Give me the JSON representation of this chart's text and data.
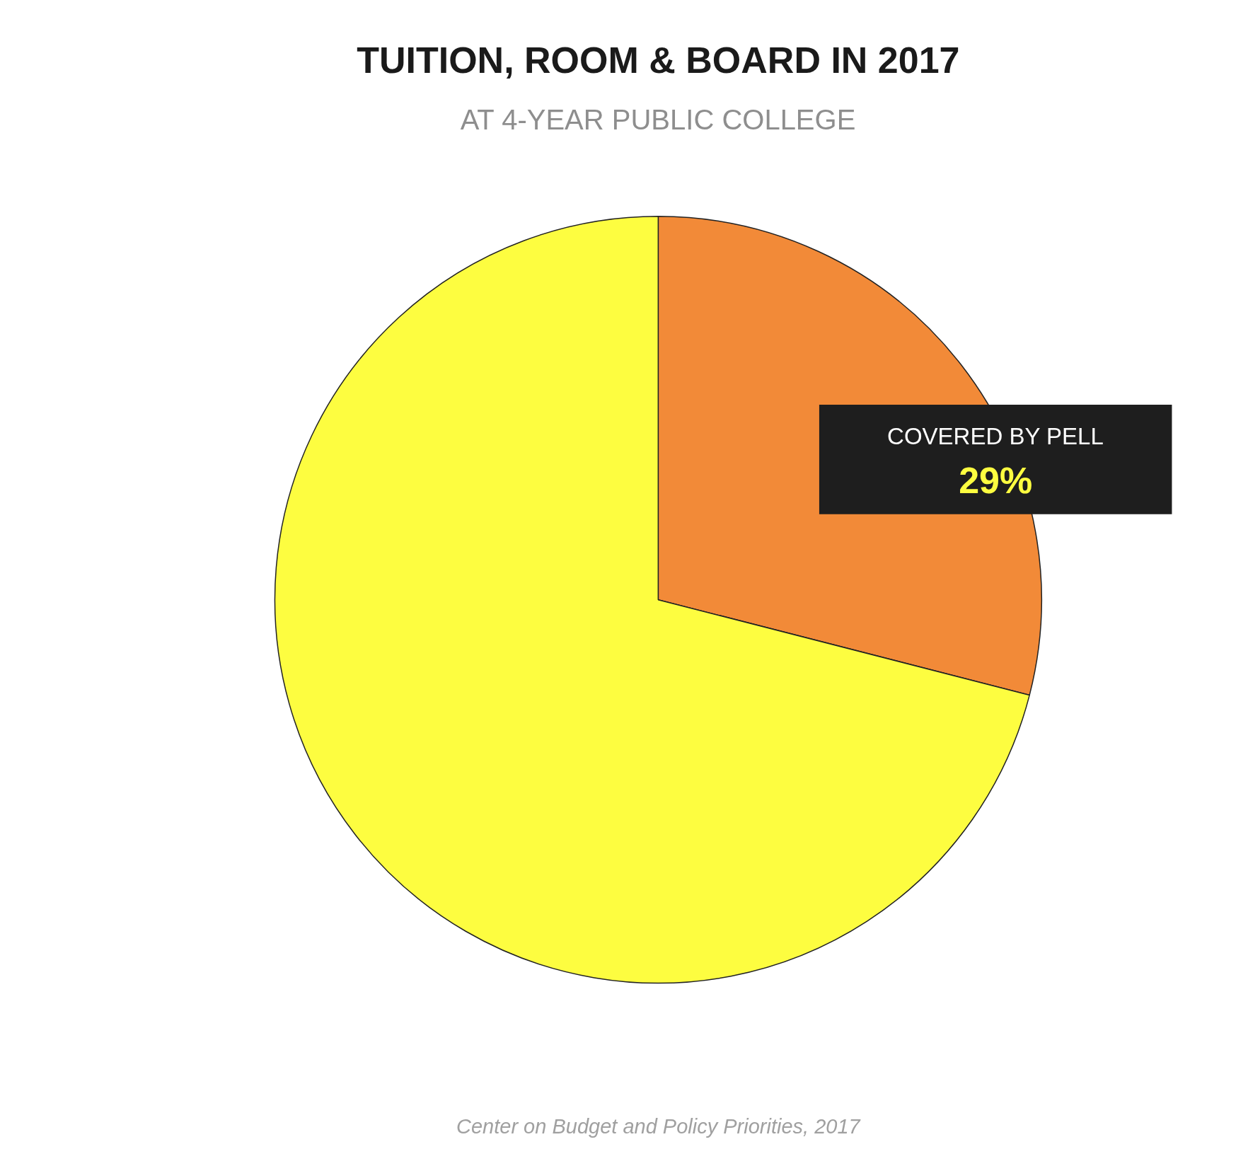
{
  "chart_data": {
    "type": "pie",
    "title": "TUITION, ROOM & BOARD IN 2017",
    "subtitle": "AT 4-YEAR PUBLIC COLLEGE",
    "categories": [
      "COVERED BY PELL",
      null
    ],
    "values": [
      29,
      71
    ],
    "colors": [
      "#f28a38",
      "#fdfd40"
    ],
    "value_labels": [
      "29%",
      null
    ],
    "annotations": [
      "Center on Budget and Policy Priorities, 2017"
    ]
  }
}
